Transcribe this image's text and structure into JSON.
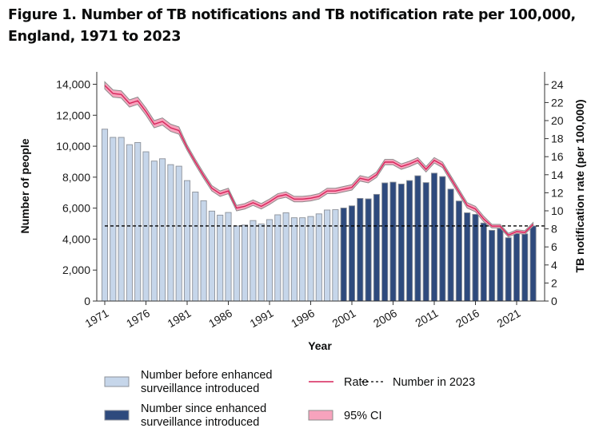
{
  "title": "Figure 1. Number of TB notifications and TB notification rate per 100,000, England, 1971 to 2023",
  "chart_data": {
    "type": "bar",
    "title": "Figure 1. Number of TB notifications and TB notification rate per 100,000, England, 1971 to 2023",
    "xlabel": "Year",
    "ylabel": "Number of people",
    "y2label": "TB notification rate (per 100,000)",
    "ylim": [
      0,
      14800
    ],
    "y2lim": [
      0,
      25.4
    ],
    "yticks": [
      0,
      2000,
      4000,
      6000,
      8000,
      10000,
      12000,
      14000
    ],
    "ytick_labels": [
      "0",
      "2,000",
      "4,000",
      "6,000",
      "8,000",
      "10,000",
      "12,000",
      "14,000"
    ],
    "y2ticks": [
      0,
      2,
      4,
      6,
      8,
      10,
      12,
      14,
      16,
      18,
      20,
      22,
      24
    ],
    "xtick_labels": [
      "1971",
      "1976",
      "1981",
      "1986",
      "1991",
      "1996",
      "2001",
      "2006",
      "2011",
      "2016",
      "2021"
    ],
    "grid": false,
    "legend_position": "bottom",
    "years": [
      1971,
      1972,
      1973,
      1974,
      1975,
      1976,
      1977,
      1978,
      1979,
      1980,
      1981,
      1982,
      1983,
      1984,
      1985,
      1986,
      1987,
      1988,
      1989,
      1990,
      1991,
      1992,
      1993,
      1994,
      1995,
      1996,
      1997,
      1998,
      1999,
      2000,
      2001,
      2002,
      2003,
      2004,
      2005,
      2006,
      2007,
      2008,
      2009,
      2010,
      2011,
      2012,
      2013,
      2014,
      2015,
      2016,
      2017,
      2018,
      2019,
      2020,
      2021,
      2022,
      2023
    ],
    "enhanced_surveillance_from": 2000,
    "series": [
      {
        "name": "Number before enhanced surveillance introduced",
        "kind": "bar",
        "axis": "left",
        "color": "#c6d6ea",
        "values": [
          11100,
          10570,
          10570,
          10100,
          10240,
          9640,
          9040,
          9190,
          8810,
          8710,
          7780,
          7040,
          6480,
          5810,
          5550,
          5720,
          4850,
          4910,
          5200,
          4980,
          5260,
          5570,
          5700,
          5380,
          5380,
          5460,
          5630,
          5880,
          5900,
          null,
          null,
          null,
          null,
          null,
          null,
          null,
          null,
          null,
          null,
          null,
          null,
          null,
          null,
          null,
          null,
          null,
          null,
          null,
          null,
          null,
          null,
          null,
          null
        ]
      },
      {
        "name": "Number since enhanced surveillance introduced",
        "kind": "bar",
        "axis": "left",
        "color": "#2e4a7d",
        "values": [
          null,
          null,
          null,
          null,
          null,
          null,
          null,
          null,
          null,
          null,
          null,
          null,
          null,
          null,
          null,
          null,
          null,
          null,
          null,
          null,
          null,
          null,
          null,
          null,
          null,
          null,
          null,
          null,
          null,
          6010,
          6150,
          6630,
          6600,
          6890,
          7630,
          7680,
          7560,
          7780,
          8090,
          7650,
          8260,
          8040,
          7230,
          6460,
          5700,
          5600,
          5040,
          4570,
          4690,
          4090,
          4370,
          4340,
          4850
        ]
      },
      {
        "name": "Rate",
        "kind": "line",
        "axis": "right",
        "color": "#d6245a",
        "values": [
          23.9,
          23.0,
          22.9,
          21.9,
          22.2,
          21.0,
          19.6,
          19.9,
          19.2,
          18.9,
          17.0,
          15.4,
          13.9,
          12.5,
          11.9,
          12.2,
          10.3,
          10.5,
          10.9,
          10.5,
          11.0,
          11.6,
          11.8,
          11.3,
          11.3,
          11.4,
          11.6,
          12.2,
          12.2,
          12.4,
          12.6,
          13.6,
          13.4,
          14.0,
          15.4,
          15.4,
          14.9,
          15.2,
          15.6,
          14.6,
          15.6,
          15.1,
          13.6,
          12.1,
          10.6,
          10.2,
          9.1,
          8.3,
          8.3,
          7.3,
          7.7,
          7.6,
          8.5
        ]
      },
      {
        "name": "95% CI",
        "kind": "band",
        "axis": "right",
        "color": "#f7a3bd",
        "lower": [
          23.5,
          22.6,
          22.5,
          21.5,
          21.8,
          20.6,
          19.2,
          19.5,
          18.8,
          18.5,
          16.7,
          15.1,
          13.6,
          12.2,
          11.6,
          11.9,
          10.0,
          10.2,
          10.6,
          10.2,
          10.7,
          11.3,
          11.5,
          11.0,
          11.0,
          11.1,
          11.3,
          11.9,
          11.9,
          12.1,
          12.3,
          13.3,
          13.1,
          13.7,
          15.1,
          15.1,
          14.6,
          14.9,
          15.3,
          14.3,
          15.3,
          14.8,
          13.3,
          11.8,
          10.3,
          9.9,
          8.8,
          8.1,
          8.1,
          7.1,
          7.5,
          7.4,
          8.3
        ],
        "upper": [
          24.3,
          23.4,
          23.3,
          22.3,
          22.6,
          21.4,
          20.0,
          20.3,
          19.6,
          19.3,
          17.3,
          15.7,
          14.2,
          12.8,
          12.2,
          12.5,
          10.6,
          10.8,
          11.2,
          10.8,
          11.3,
          11.9,
          12.1,
          11.6,
          11.6,
          11.7,
          11.9,
          12.5,
          12.5,
          12.7,
          12.9,
          13.9,
          13.7,
          14.3,
          15.7,
          15.7,
          15.2,
          15.5,
          15.9,
          14.9,
          15.9,
          15.4,
          13.9,
          12.4,
          10.9,
          10.5,
          9.4,
          8.5,
          8.5,
          7.5,
          7.9,
          7.8,
          8.7
        ]
      },
      {
        "name": "Number in 2023",
        "kind": "reference-line",
        "axis": "left",
        "color": "#000000",
        "value": 4850
      }
    ]
  }
}
